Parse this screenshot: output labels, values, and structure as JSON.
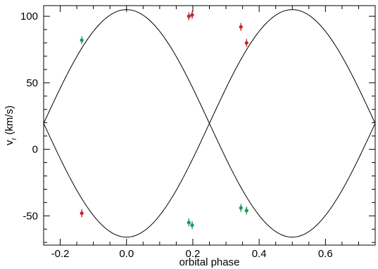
{
  "chart_data": {
    "type": "scatter",
    "title": "",
    "xlabel": "orbital phase",
    "ylabel_main": "v",
    "ylabel_sub": "r",
    "ylabel_rest": " (km/s)",
    "xlim": [
      -0.25,
      0.75
    ],
    "ylim": [
      -72,
      108
    ],
    "x_ticks": [
      -0.2,
      0.0,
      0.2,
      0.4,
      0.6
    ],
    "x_tick_labels": [
      "-0.2",
      "0.0",
      "0.2",
      "0.4",
      "0.6"
    ],
    "y_ticks": [
      -50,
      0,
      50,
      100
    ],
    "y_tick_labels": [
      "-50",
      "0",
      "50",
      "100"
    ],
    "grid": false,
    "model_curves": [
      {
        "gamma": 19.5,
        "amplitude": 85.5,
        "phase_shift": 0.0
      },
      {
        "gamma": 19.5,
        "amplitude": 85.5,
        "phase_shift": 0.5
      }
    ],
    "series": [
      {
        "color": "#c0282d",
        "points": [
          {
            "x": -0.135,
            "y": -48,
            "err": 3
          },
          {
            "x": 0.188,
            "y": 100,
            "err": 3
          },
          {
            "x": 0.198,
            "y": 101,
            "err": 3
          },
          {
            "x": 0.345,
            "y": 92,
            "err": 3
          },
          {
            "x": 0.362,
            "y": 80,
            "err": 3
          }
        ]
      },
      {
        "color": "#1a9a5a",
        "points": [
          {
            "x": -0.135,
            "y": 82,
            "err": 3
          },
          {
            "x": 0.188,
            "y": -55,
            "err": 3
          },
          {
            "x": 0.198,
            "y": -57,
            "err": 3
          },
          {
            "x": 0.345,
            "y": -44,
            "err": 3
          },
          {
            "x": 0.362,
            "y": -46,
            "err": 3
          }
        ]
      }
    ]
  }
}
